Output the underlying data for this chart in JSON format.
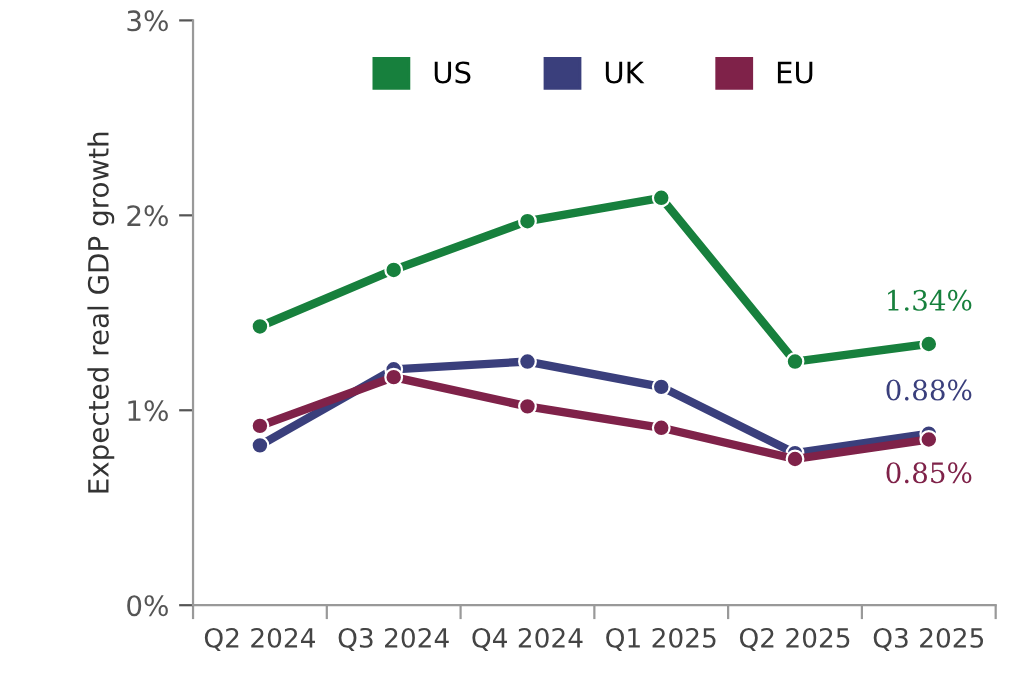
{
  "chart_data": {
    "type": "line",
    "ylabel": "Expected real GDP growth",
    "categories": [
      "Q2 2024",
      "Q3 2024",
      "Q4 2024",
      "Q1 2025",
      "Q2 2025",
      "Q3 2025"
    ],
    "series": [
      {
        "name": "US",
        "color": "#17803d",
        "values": [
          1.43,
          1.72,
          1.97,
          2.09,
          1.25,
          1.34
        ],
        "value_labels": [
          null,
          null,
          null,
          null,
          null,
          "1.34%"
        ]
      },
      {
        "name": "UK",
        "color": "#3a3f7c",
        "values": [
          0.82,
          1.21,
          1.25,
          1.12,
          0.78,
          0.88
        ],
        "value_labels": [
          null,
          null,
          null,
          null,
          null,
          "0.88%"
        ]
      },
      {
        "name": "EU",
        "color": "#7f2249",
        "values": [
          0.92,
          1.17,
          1.02,
          0.91,
          0.75,
          0.85
        ],
        "value_labels": [
          null,
          null,
          null,
          null,
          null,
          "0.85%"
        ]
      }
    ],
    "ylim": [
      0,
      3
    ],
    "yticks": [
      {
        "value": 0,
        "label": "0%"
      },
      {
        "value": 1,
        "label": "1%"
      },
      {
        "value": 2,
        "label": "2%"
      },
      {
        "value": 3,
        "label": "3%"
      }
    ],
    "legend": "top",
    "grid": false,
    "marker": "circle",
    "line_style": "solid"
  }
}
